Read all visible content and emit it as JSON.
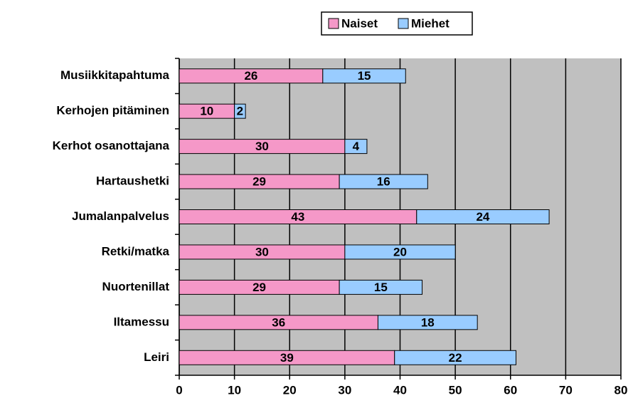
{
  "chart_data": {
    "type": "stacked_bar_horizontal",
    "categories": [
      "Musiikkitapahtuma",
      "Kerhojen pitäminen",
      "Kerhot osanottajana",
      "Hartaushetki",
      "Jumalanpalvelus",
      "Retki/matka",
      "Nuortenillat",
      "Iltamessu",
      "Leiri"
    ],
    "series": [
      {
        "name": "Naiset",
        "color": "#f598c8",
        "values": [
          26,
          10,
          30,
          29,
          43,
          30,
          29,
          36,
          39
        ]
      },
      {
        "name": "Miehet",
        "color": "#99ccff",
        "values": [
          15,
          2,
          4,
          16,
          24,
          20,
          15,
          18,
          22
        ]
      }
    ],
    "xlim": [
      0,
      80
    ],
    "xticks": [
      0,
      10,
      20,
      30,
      40,
      50,
      60,
      70,
      80
    ],
    "grid": true,
    "legend": "top"
  }
}
